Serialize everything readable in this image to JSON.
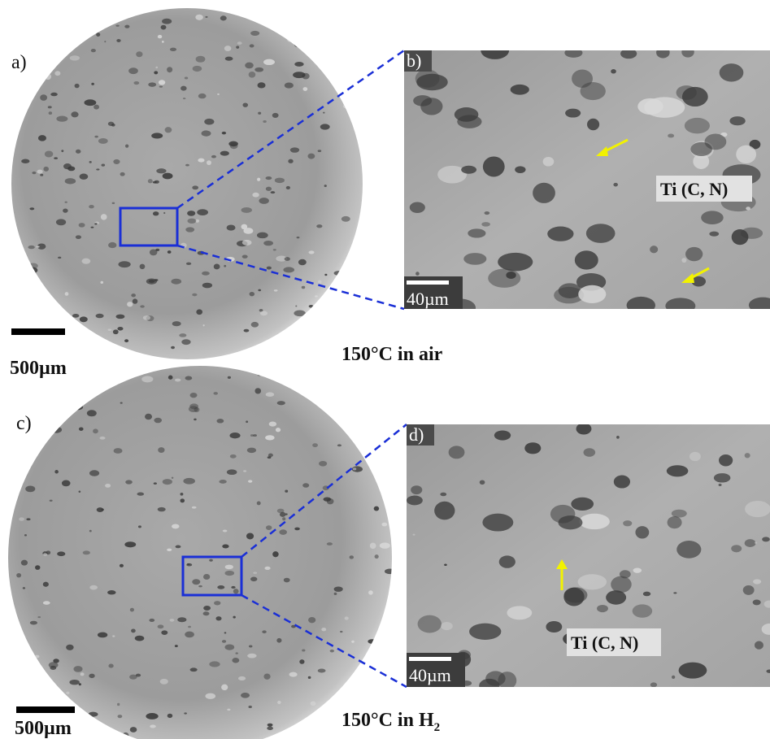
{
  "panels": [
    {
      "label": "a)",
      "scale_bar": "500µm"
    },
    {
      "label": "b)",
      "scale_bar": "40µm",
      "annotation": "Ti (C, N)"
    },
    {
      "label": "c)",
      "scale_bar": "500µm"
    },
    {
      "label": "d)",
      "scale_bar": "40µm",
      "annotation": "Ti (C, N)"
    }
  ],
  "captions": [
    {
      "text": "150°C in air"
    },
    {
      "text": "150°C in H",
      "subscript": "2"
    }
  ]
}
